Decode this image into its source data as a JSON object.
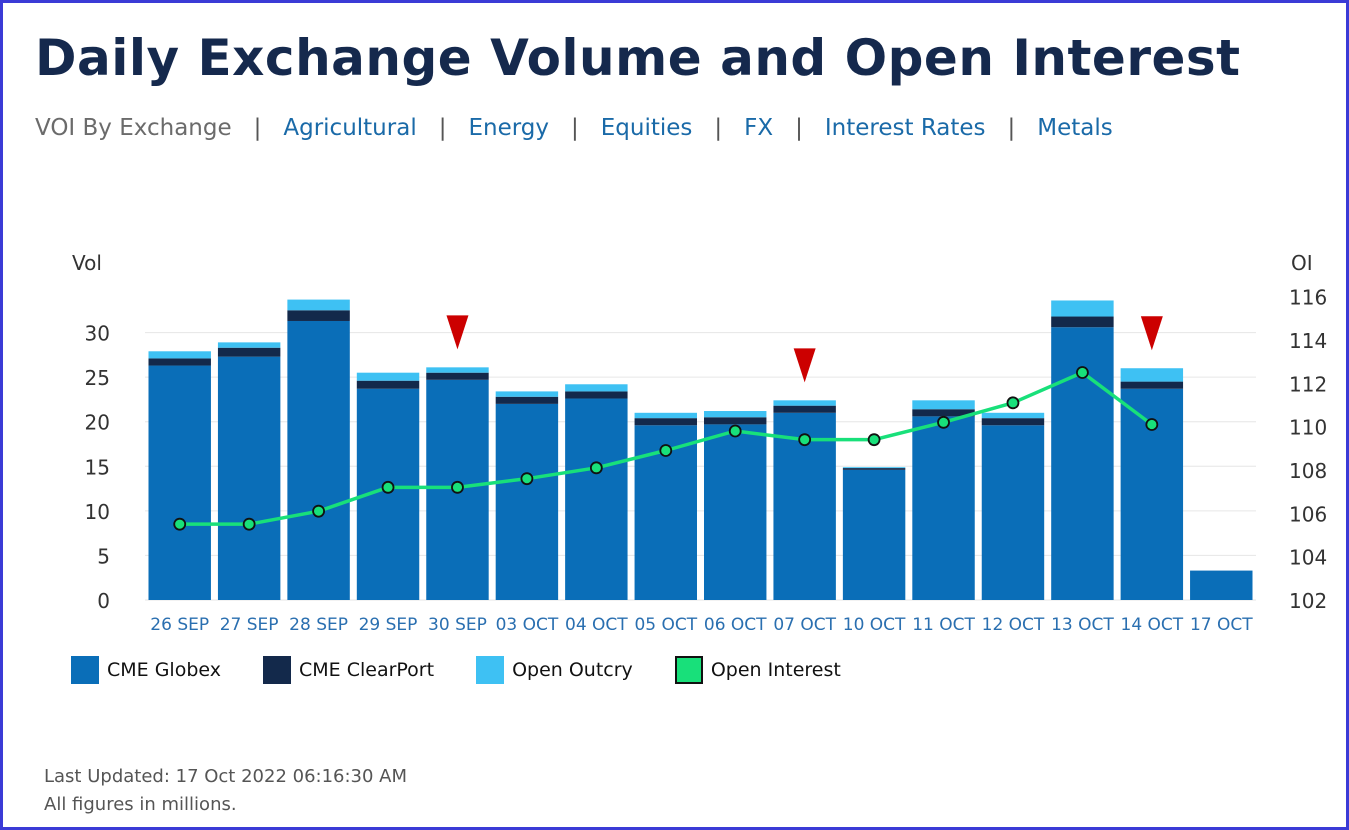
{
  "header": {
    "title": "Daily Exchange Volume and Open Interest"
  },
  "nav": {
    "current": "VOI By Exchange",
    "separator": "|",
    "links": [
      "Agricultural",
      "Energy",
      "Equities",
      "FX",
      "Interest Rates",
      "Metals"
    ]
  },
  "chart_data": {
    "type": "bar",
    "stacked": true,
    "categories": [
      "26 SEP",
      "27 SEP",
      "28 SEP",
      "29 SEP",
      "30 SEP",
      "03 OCT",
      "04 OCT",
      "05 OCT",
      "06 OCT",
      "07 OCT",
      "10 OCT",
      "11 OCT",
      "12 OCT",
      "13 OCT",
      "14 OCT",
      "17 OCT"
    ],
    "series": [
      {
        "name": "CME Globex",
        "type": "bar",
        "axis": "left",
        "color": "#0a6eb8",
        "values": [
          26.3,
          27.3,
          31.3,
          23.7,
          24.7,
          22.0,
          22.6,
          19.6,
          19.7,
          21.0,
          14.6,
          20.6,
          19.6,
          30.6,
          23.7,
          3.3
        ]
      },
      {
        "name": "CME ClearPort",
        "type": "bar",
        "axis": "left",
        "color": "#13294b",
        "values": [
          0.8,
          1.0,
          1.2,
          0.9,
          0.8,
          0.8,
          0.8,
          0.8,
          0.8,
          0.8,
          0.2,
          0.8,
          0.8,
          1.2,
          0.8,
          0.0
        ]
      },
      {
        "name": "Open Outcry",
        "type": "bar",
        "axis": "left",
        "color": "#3ec1f3",
        "values": [
          0.8,
          0.6,
          1.2,
          0.9,
          0.6,
          0.6,
          0.8,
          0.6,
          0.7,
          0.6,
          0.1,
          1.0,
          0.6,
          1.8,
          1.5,
          0.0
        ]
      },
      {
        "name": "Open Interest",
        "type": "line",
        "axis": "right",
        "color": "#18e07a",
        "values": [
          105.5,
          105.5,
          106.1,
          107.2,
          107.2,
          107.6,
          108.1,
          108.9,
          109.8,
          109.4,
          109.4,
          110.2,
          111.1,
          112.5,
          110.1,
          null
        ]
      }
    ],
    "y_left": {
      "label": "Vol",
      "ylim": [
        0,
        35
      ],
      "ticks": [
        0,
        5,
        10,
        15,
        20,
        25,
        30
      ]
    },
    "y_right": {
      "label": "OI",
      "ylim": [
        102,
        116.4
      ],
      "ticks": [
        102,
        104,
        106,
        108,
        110,
        112,
        114,
        116
      ]
    },
    "markers": [
      {
        "category": "30 SEP",
        "symbol": "down-triangle",
        "color": "#cc0000"
      },
      {
        "category": "07 OCT",
        "symbol": "down-triangle",
        "color": "#cc0000"
      },
      {
        "category": "14 OCT",
        "symbol": "down-triangle",
        "color": "#cc0000"
      }
    ],
    "grid": "horizontal",
    "legend_position": "bottom-left"
  },
  "footer": {
    "last_updated": "Last Updated: 17 Oct 2022 06:16:30 AM",
    "note": "All figures in millions."
  }
}
